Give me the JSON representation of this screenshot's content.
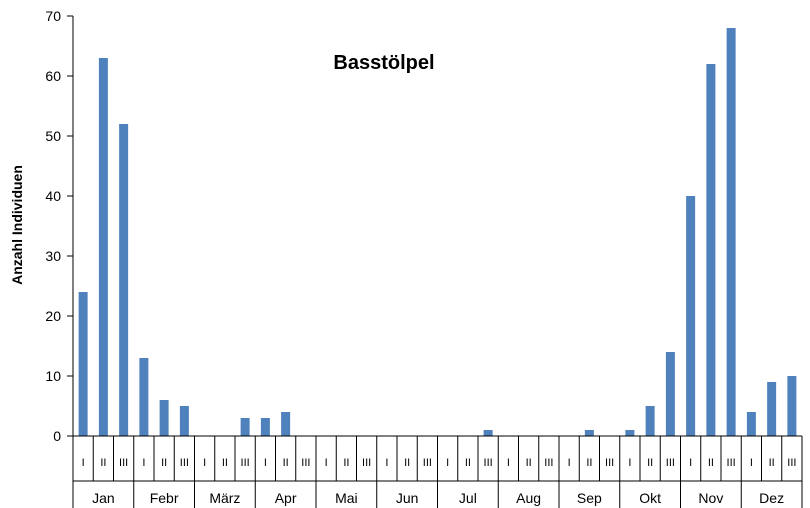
{
  "chart_data": {
    "type": "bar",
    "title": "Basstölpel",
    "xlabel": "",
    "ylabel": "Anzahl Individuen",
    "ylim": [
      0,
      70
    ],
    "yticks": [
      0,
      10,
      20,
      30,
      40,
      50,
      60,
      70
    ],
    "grid": false,
    "legend": "none",
    "bar_color": "#4f81bd",
    "months": [
      "Jan",
      "Febr",
      "März",
      "Apr",
      "Mai",
      "Jun",
      "Jul",
      "Aug",
      "Sep",
      "Okt",
      "Nov",
      "Dez"
    ],
    "decades": [
      "I",
      "II",
      "III"
    ],
    "series": [
      {
        "values": [
          24,
          63,
          52,
          13,
          6,
          5,
          0,
          0,
          3,
          3,
          4,
          0,
          0,
          0,
          0,
          0,
          0,
          0,
          0,
          0,
          1,
          0,
          0,
          0,
          0,
          1,
          0,
          1,
          5,
          14,
          40,
          62,
          68,
          4,
          9,
          10
        ]
      }
    ]
  }
}
